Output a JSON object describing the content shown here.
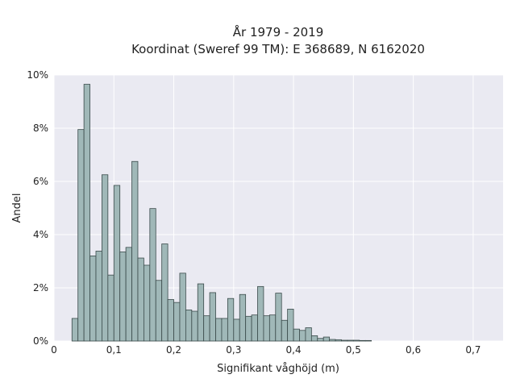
{
  "chart_data": {
    "type": "bar",
    "title": "År 1979 - 2019",
    "subtitle": "Koordinat (Sweref 99 TM): E 368689, N 6162020",
    "xlabel": "Signifikant våghöjd (m)",
    "ylabel": "Andel",
    "xlim": [
      0,
      0.75
    ],
    "ylim": [
      0,
      10
    ],
    "x_ticks": [
      0,
      0.1,
      0.2,
      0.3,
      0.4,
      0.5,
      0.6,
      0.7
    ],
    "x_tick_labels": [
      "0",
      "0,1",
      "0,2",
      "0,3",
      "0,4",
      "0,5",
      "0,6",
      "0,7"
    ],
    "y_ticks": [
      0,
      2,
      4,
      6,
      8,
      10
    ],
    "y_tick_labels": [
      "0%",
      "2%",
      "4%",
      "6%",
      "8%",
      "10%"
    ],
    "bin_width": 0.01,
    "bin_start": 0.03,
    "values": [
      0.85,
      7.95,
      9.65,
      3.2,
      3.38,
      6.25,
      2.48,
      5.85,
      3.35,
      3.52,
      6.75,
      3.12,
      2.85,
      4.98,
      2.28,
      3.65,
      1.56,
      1.45,
      2.55,
      1.17,
      1.12,
      2.15,
      0.95,
      1.82,
      0.85,
      0.85,
      1.6,
      0.82,
      1.75,
      0.93,
      0.98,
      2.05,
      0.95,
      0.98,
      1.8,
      0.78,
      1.2,
      0.45,
      0.4,
      0.5,
      0.2,
      0.1,
      0.15,
      0.06,
      0.05,
      0.03,
      0.03,
      0.03,
      0.02,
      0.02
    ],
    "grid": true,
    "bar_color": "#a0b8b8",
    "bar_edge_color": "#3a4a4a",
    "plot_background": "#eaeaf2"
  }
}
